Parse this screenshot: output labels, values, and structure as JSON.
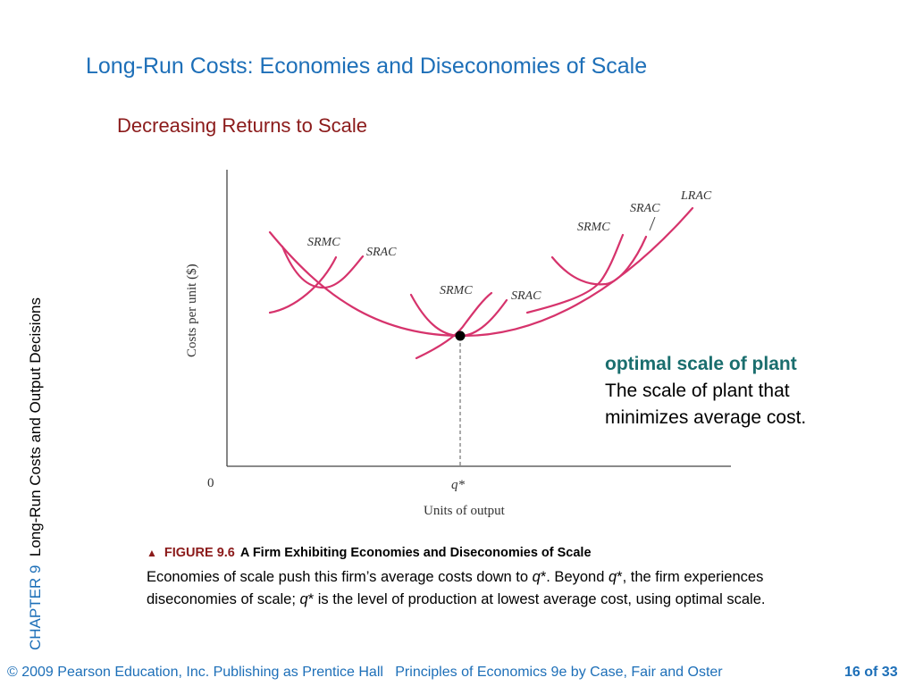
{
  "title": "Long-Run Costs: Economies and Diseconomies of Scale",
  "subtitle": "Decreasing Returns to Scale",
  "side": {
    "chapter": "CHAPTER 9",
    "text": "Long-Run Costs and Output Decisions"
  },
  "diagram": {
    "y_axis_label": "Costs per unit ($)",
    "x_axis_label": "Units of output",
    "origin_label": "0",
    "qstar_label": "q*",
    "curve_labels": {
      "lrac": "LRAC",
      "srmc_left": "SRMC",
      "srac_left": "SRAC",
      "srmc_mid": "SRMC",
      "srac_mid": "SRAC",
      "srmc_right": "SRMC",
      "srac_right": "SRAC"
    },
    "curve_color": "#d6336c"
  },
  "definition": {
    "term": "optimal scale of plant",
    "text": "The scale of plant that minimizes average cost."
  },
  "figure": {
    "label": "FIGURE 9.6",
    "name": "A Firm Exhibiting Economies and Diseconomies of Scale",
    "caption": {
      "p1": "Economies of scale push this firm’s average costs down to ",
      "q1": "q",
      "p2": "*. Beyond ",
      "q2": "q",
      "p3": "*, the firm experiences diseconomies of scale; ",
      "q3": "q",
      "p4": "* is the level of production at lowest average cost, using optimal scale."
    }
  },
  "footer": {
    "left": "© 2009 Pearson Education, Inc. Publishing as Prentice Hall   Principles of Economics 9e by Case, Fair and Oster",
    "page": "16 of 33"
  }
}
